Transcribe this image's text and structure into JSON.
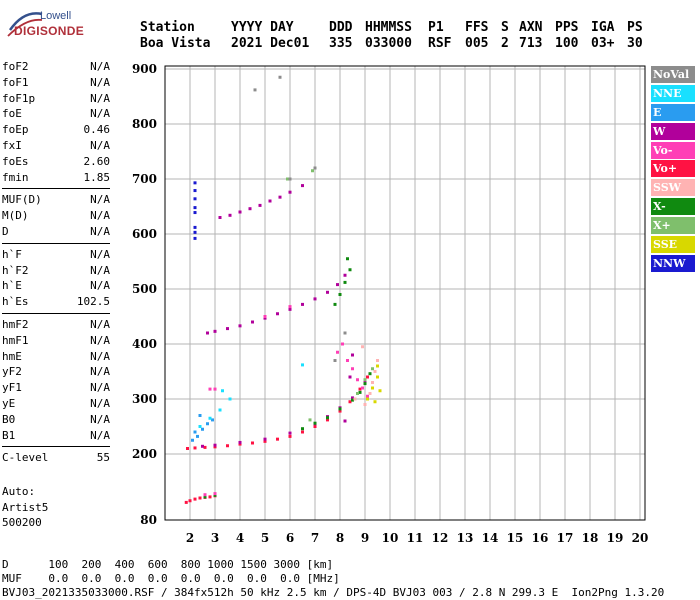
{
  "logo": {
    "line1": "Lowell",
    "line2": "DIGISONDE"
  },
  "header": {
    "labels": [
      "Station",
      "YYYY DAY",
      "DDD",
      "HHMMSS",
      "P1",
      "FFS",
      "S",
      "AXN",
      "PPS",
      "IGA",
      "PS"
    ],
    "values": [
      "Boa Vista",
      "2021 Dec01",
      "335",
      "033000",
      "RSF",
      "005",
      "2",
      "713",
      "100",
      "03+",
      "30"
    ]
  },
  "parameters": [
    [
      {
        "name": "foF2",
        "value": "N/A"
      },
      {
        "name": "foF1",
        "value": "N/A"
      },
      {
        "name": "foF1p",
        "value": "N/A"
      },
      {
        "name": "foE",
        "value": "N/A"
      },
      {
        "name": "foEp",
        "value": "0.46"
      },
      {
        "name": "fxI",
        "value": "N/A"
      },
      {
        "name": "foEs",
        "value": "2.60"
      },
      {
        "name": "fmin",
        "value": "1.85"
      }
    ],
    [
      {
        "name": "MUF(D)",
        "value": "N/A"
      },
      {
        "name": "M(D)",
        "value": "N/A"
      },
      {
        "name": "D",
        "value": "N/A"
      }
    ],
    [
      {
        "name": "h`F",
        "value": "N/A"
      },
      {
        "name": "h`F2",
        "value": "N/A"
      },
      {
        "name": "h`E",
        "value": "N/A"
      },
      {
        "name": "h`Es",
        "value": "102.5"
      }
    ],
    [
      {
        "name": "hmF2",
        "value": "N/A"
      },
      {
        "name": "hmF1",
        "value": "N/A"
      },
      {
        "name": "hmE",
        "value": "N/A"
      },
      {
        "name": "yF2",
        "value": "N/A"
      },
      {
        "name": "yF1",
        "value": "N/A"
      },
      {
        "name": "yE",
        "value": "N/A"
      },
      {
        "name": "B0",
        "value": "N/A"
      },
      {
        "name": "B1",
        "value": "N/A"
      }
    ],
    [
      {
        "name": "C-level",
        "value": "55"
      }
    ]
  ],
  "auto": {
    "label": "Auto:",
    "artist": "Artist5",
    "version": "500200"
  },
  "legend": [
    {
      "label": "NoVal",
      "bg": "#8c8c8c",
      "fg": "#ffffff"
    },
    {
      "label": "NNE",
      "bg": "#19e0ff",
      "fg": "#ffffff"
    },
    {
      "label": "E",
      "bg": "#2a9cf0",
      "fg": "#ffffff"
    },
    {
      "label": "W",
      "bg": "#b1009b",
      "fg": "#ffffff"
    },
    {
      "label": "Vo-",
      "bg": "#ff3fb6",
      "fg": "#ffffff"
    },
    {
      "label": "Vo+",
      "bg": "#ff1243",
      "fg": "#ffffff"
    },
    {
      "label": "SSW",
      "bg": "#ffb3b3",
      "fg": "#ffffff"
    },
    {
      "label": "X-",
      "bg": "#108a10",
      "fg": "#ffffff"
    },
    {
      "label": "X+",
      "bg": "#7fbf6c",
      "fg": "#ffffff"
    },
    {
      "label": "SSE",
      "bg": "#d8d800",
      "fg": "#ffffff"
    },
    {
      "label": "NNW",
      "bg": "#1a1ad0",
      "fg": "#ffffff"
    }
  ],
  "chart_data": {
    "type": "scatter",
    "title": "",
    "xlabel": "",
    "ylabel": "",
    "xlim": [
      1,
      20
    ],
    "ylim": [
      80,
      900
    ],
    "xticks": [
      2,
      3,
      4,
      5,
      6,
      7,
      8,
      9,
      10,
      11,
      12,
      13,
      14,
      15,
      16,
      17,
      18,
      19,
      20
    ],
    "yticks": [
      80,
      200,
      300,
      400,
      500,
      600,
      700,
      800,
      900
    ],
    "grid": true,
    "legend_position": "right",
    "series": [
      {
        "color": "#ff1243",
        "points": [
          [
            1.85,
            112
          ],
          [
            2.0,
            115
          ],
          [
            2.2,
            118
          ],
          [
            2.4,
            120
          ],
          [
            2.6,
            121
          ],
          [
            2.8,
            122
          ],
          [
            3.0,
            124
          ],
          [
            1.9,
            210
          ],
          [
            2.2,
            211
          ],
          [
            2.6,
            212
          ],
          [
            3.0,
            213
          ],
          [
            3.5,
            215
          ],
          [
            4.0,
            218
          ],
          [
            4.5,
            220
          ],
          [
            5.0,
            223
          ],
          [
            5.5,
            227
          ],
          [
            6.0,
            232
          ],
          [
            6.5,
            240
          ],
          [
            7.0,
            250
          ],
          [
            7.5,
            262
          ],
          [
            8.0,
            278
          ],
          [
            8.4,
            295
          ],
          [
            8.8,
            318
          ],
          [
            9.1,
            340
          ]
        ]
      },
      {
        "color": "#b1009b",
        "points": [
          [
            2.7,
            420
          ],
          [
            3.0,
            423
          ],
          [
            3.5,
            428
          ],
          [
            4.0,
            433
          ],
          [
            4.5,
            440
          ],
          [
            5.0,
            447
          ],
          [
            5.5,
            455
          ],
          [
            6.0,
            463
          ],
          [
            6.5,
            472
          ],
          [
            7.0,
            482
          ],
          [
            7.5,
            494
          ],
          [
            7.9,
            508
          ],
          [
            8.2,
            525
          ],
          [
            3.2,
            630
          ],
          [
            3.6,
            634
          ],
          [
            4.0,
            640
          ],
          [
            4.4,
            646
          ],
          [
            4.8,
            652
          ],
          [
            5.2,
            660
          ],
          [
            5.6,
            667
          ],
          [
            6.0,
            676
          ],
          [
            6.5,
            688
          ],
          [
            2.5,
            214
          ],
          [
            3.0,
            216
          ],
          [
            4.0,
            221
          ],
          [
            5.0,
            227
          ],
          [
            6.0,
            238
          ],
          [
            7.0,
            255
          ],
          [
            7.5,
            268
          ],
          [
            8.0,
            284
          ],
          [
            8.5,
            302
          ],
          [
            9.0,
            330
          ],
          [
            8.2,
            260
          ],
          [
            8.4,
            340
          ],
          [
            8.5,
            380
          ]
        ]
      },
      {
        "color": "#108a10",
        "points": [
          [
            6.5,
            246
          ],
          [
            7.0,
            256
          ],
          [
            7.5,
            266
          ],
          [
            8.0,
            282
          ],
          [
            8.5,
            298
          ],
          [
            8.8,
            312
          ],
          [
            9.0,
            328
          ],
          [
            9.2,
            346
          ],
          [
            7.8,
            472
          ],
          [
            8.0,
            490
          ],
          [
            8.2,
            512
          ],
          [
            8.4,
            535
          ],
          [
            8.3,
            555
          ],
          [
            2.6,
            122
          ],
          [
            3.0,
            125
          ]
        ]
      },
      {
        "color": "#ff3fb6",
        "points": [
          [
            7.9,
            385
          ],
          [
            8.1,
            400
          ],
          [
            8.3,
            370
          ],
          [
            8.5,
            355
          ],
          [
            8.7,
            335
          ],
          [
            8.9,
            320
          ],
          [
            9.1,
            305
          ],
          [
            3.0,
            318
          ],
          [
            2.8,
            318
          ],
          [
            5.0,
            450
          ],
          [
            6.0,
            468
          ],
          [
            2.6,
            126
          ],
          [
            3.0,
            128
          ]
        ]
      },
      {
        "color": "#2a9cf0",
        "points": [
          [
            2.1,
            225
          ],
          [
            2.3,
            232
          ],
          [
            2.5,
            245
          ],
          [
            2.7,
            255
          ],
          [
            2.9,
            262
          ],
          [
            2.4,
            270
          ],
          [
            2.2,
            240
          ]
        ]
      },
      {
        "color": "#19e0ff",
        "points": [
          [
            2.4,
            250
          ],
          [
            2.8,
            265
          ],
          [
            3.2,
            280
          ],
          [
            3.6,
            300
          ],
          [
            3.3,
            315
          ],
          [
            6.5,
            362
          ]
        ]
      },
      {
        "color": "#ffb3b3",
        "points": [
          [
            9.0,
            290
          ],
          [
            9.2,
            310
          ],
          [
            9.3,
            330
          ],
          [
            9.4,
            350
          ],
          [
            9.5,
            370
          ],
          [
            8.6,
            300
          ],
          [
            8.9,
            395
          ]
        ]
      },
      {
        "color": "#d8d800",
        "points": [
          [
            9.1,
            300
          ],
          [
            9.3,
            320
          ],
          [
            9.5,
            340
          ],
          [
            9.5,
            360
          ],
          [
            9.6,
            315
          ],
          [
            9.4,
            295
          ]
        ]
      },
      {
        "color": "#7fbf6c",
        "points": [
          [
            6.8,
            262
          ],
          [
            8.7,
            310
          ],
          [
            9.0,
            335
          ],
          [
            9.3,
            355
          ],
          [
            6.9,
            715
          ],
          [
            5.9,
            700
          ]
        ]
      },
      {
        "color": "#8c8c8c",
        "points": [
          [
            4.6,
            862
          ],
          [
            5.6,
            885
          ],
          [
            6.0,
            700
          ],
          [
            7.0,
            720
          ],
          [
            7.8,
            370
          ],
          [
            8.2,
            420
          ]
        ]
      },
      {
        "color": "#1a1ad0",
        "points": [
          [
            2.2,
            693
          ],
          [
            2.2,
            679
          ],
          [
            2.2,
            664
          ],
          [
            2.2,
            648
          ],
          [
            2.2,
            639
          ],
          [
            2.2,
            612
          ],
          [
            2.2,
            603
          ],
          [
            2.2,
            592
          ]
        ]
      }
    ]
  },
  "footer": {
    "line1": "D      100  200  400  600  800 1000 1500 3000 [km]",
    "line2": "MUF    0.0  0.0  0.0  0.0  0.0  0.0  0.0  0.0 [MHz]",
    "line3": "BVJ03_2021335033000.RSF / 384fx512h 50 kHz 2.5 km / DPS-4D BVJ03 003 / 2.8 N 299.3 E  Ion2Png 1.3.20"
  }
}
